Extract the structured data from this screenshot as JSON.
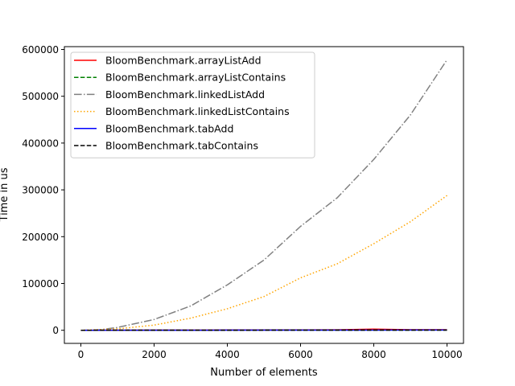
{
  "chart_data": {
    "type": "line",
    "title": "",
    "xlabel": "Number of elements",
    "ylabel": "Time in us",
    "xlim": [
      -450,
      10450
    ],
    "ylim": [
      -28000,
      606000
    ],
    "xticks": [
      0,
      2000,
      4000,
      6000,
      8000,
      10000
    ],
    "yticks": [
      0,
      100000,
      200000,
      300000,
      400000,
      500000,
      600000
    ],
    "grid": false,
    "legend_position": "top-left",
    "series": [
      {
        "name": "BloomBenchmark.arrayListAdd",
        "color": "#ff0000",
        "linestyle": "solid",
        "x": [
          0,
          1000,
          2000,
          3000,
          4000,
          5000,
          6000,
          7000,
          8000,
          9000,
          10000
        ],
        "y": [
          0,
          200,
          300,
          400,
          500,
          600,
          700,
          900,
          2500,
          1200,
          1300
        ]
      },
      {
        "name": "BloomBenchmark.arrayListContains",
        "color": "#008000",
        "linestyle": "dashed",
        "x": [
          0,
          1000,
          2000,
          3000,
          4000,
          5000,
          6000,
          7000,
          8000,
          9000,
          10000
        ],
        "y": [
          0,
          50,
          100,
          150,
          200,
          250,
          300,
          350,
          400,
          450,
          500
        ]
      },
      {
        "name": "BloomBenchmark.linkedListAdd",
        "color": "#808080",
        "linestyle": "dashdot",
        "x": [
          0,
          500,
          1000,
          2000,
          3000,
          4000,
          5000,
          6000,
          7000,
          8000,
          9000,
          10000
        ],
        "y": [
          0,
          1000,
          6000,
          23000,
          52000,
          97000,
          150000,
          222000,
          283000,
          365000,
          460000,
          578000
        ]
      },
      {
        "name": "BloomBenchmark.linkedListContains",
        "color": "#ffa500",
        "linestyle": "dotted",
        "x": [
          0,
          1000,
          2000,
          3000,
          4000,
          5000,
          6000,
          7000,
          8000,
          9000,
          10000
        ],
        "y": [
          0,
          3000,
          11000,
          26000,
          46000,
          72000,
          112000,
          142000,
          185000,
          232000,
          288000
        ]
      },
      {
        "name": "BloomBenchmark.tabAdd",
        "color": "#0000ff",
        "linestyle": "solid",
        "x": [
          0,
          1000,
          2000,
          3000,
          4000,
          5000,
          6000,
          7000,
          8000,
          9000,
          10000
        ],
        "y": [
          0,
          100,
          150,
          200,
          250,
          300,
          350,
          400,
          450,
          500,
          550
        ]
      },
      {
        "name": "BloomBenchmark.tabContains",
        "color": "#000000",
        "linestyle": "dashed",
        "x": [
          0,
          1000,
          2000,
          3000,
          4000,
          5000,
          6000,
          7000,
          8000,
          9000,
          10000
        ],
        "y": [
          0,
          80,
          120,
          160,
          200,
          240,
          280,
          320,
          360,
          400,
          440
        ]
      }
    ]
  }
}
